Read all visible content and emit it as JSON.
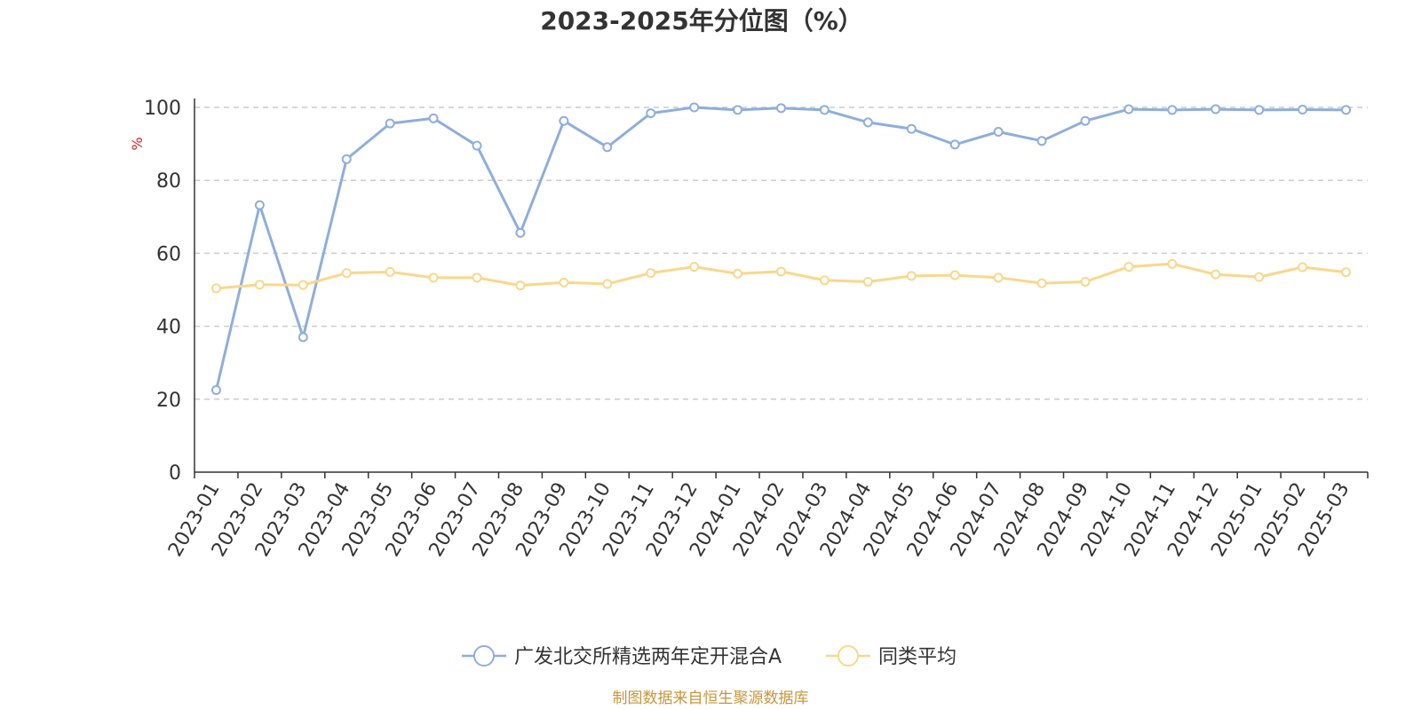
{
  "chart_data": {
    "type": "line",
    "title": "2023-2025年分位图（%）",
    "ylabel": "%",
    "ylim": [
      0,
      100
    ],
    "yticks": [
      0,
      20,
      40,
      60,
      80,
      100
    ],
    "grid": true,
    "legend_position": "bottom-center",
    "categories": [
      "2023-01",
      "2023-02",
      "2023-03",
      "2023-04",
      "2023-05",
      "2023-06",
      "2023-07",
      "2023-08",
      "2023-09",
      "2023-10",
      "2023-11",
      "2023-12",
      "2024-01",
      "2024-02",
      "2024-03",
      "2024-04",
      "2024-05",
      "2024-06",
      "2024-07",
      "2024-08",
      "2024-09",
      "2024-10",
      "2024-11",
      "2024-12",
      "2025-01",
      "2025-02",
      "2025-03"
    ],
    "series": [
      {
        "name": "广发北交所精选两年定开混合A",
        "color": "#8EAEDB",
        "values": [
          22.5,
          73.2,
          37.0,
          85.8,
          95.6,
          97.0,
          89.5,
          65.6,
          96.3,
          89.1,
          98.4,
          100.0,
          99.3,
          99.8,
          99.3,
          95.9,
          94.1,
          89.8,
          93.3,
          90.8,
          96.3,
          99.5,
          99.3,
          99.5,
          99.3,
          99.4,
          99.3
        ]
      },
      {
        "name": "同类平均",
        "color": "#FAD78C",
        "values": [
          50.4,
          51.4,
          51.3,
          54.6,
          54.9,
          53.3,
          53.3,
          51.2,
          52.0,
          51.6,
          54.6,
          56.3,
          54.4,
          55.0,
          52.6,
          52.2,
          53.8,
          54.0,
          53.3,
          51.8,
          52.2,
          56.3,
          57.1,
          54.2,
          53.5,
          56.2,
          54.8
        ]
      }
    ],
    "source_text": "制图数据来自恒生聚源数据库",
    "axis_label_color": "#E02020",
    "source_color": "#C8963C"
  }
}
